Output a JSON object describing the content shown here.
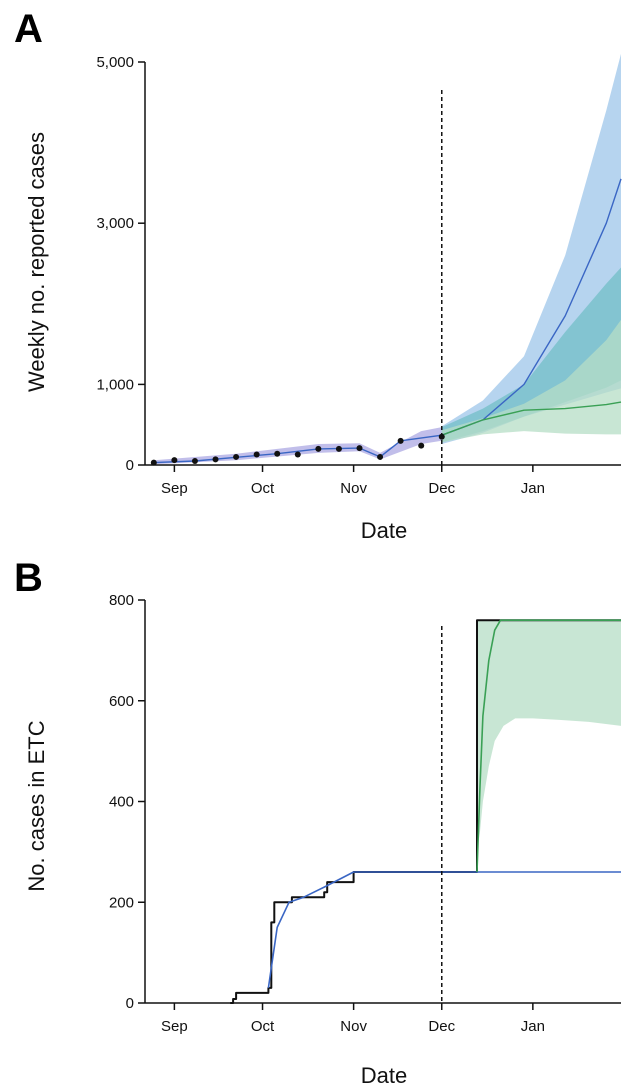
{
  "figure": {
    "panel_a_label": "A",
    "panel_b_label": "B"
  },
  "colors": {
    "blue_line": "#3a66c4",
    "blue_band": "#9ec5ea",
    "teal_band": "#5ab7b8",
    "green_line": "#3aa055",
    "green_band": "#b6ddc5",
    "purple_band": "#b6b3e6",
    "black": "#111111"
  },
  "chart_data": [
    {
      "type": "line",
      "panel": "A",
      "xlabel": "Date",
      "ylabel": "Weekly no. reported cases",
      "x_ticks": [
        "Sep",
        "Oct",
        "Nov",
        "Dec",
        "Jan"
      ],
      "y_ticks": [
        "0",
        "1,000",
        "3,000",
        "5,000"
      ],
      "y_tick_values": [
        0,
        1000,
        3000,
        5000
      ],
      "ylim": [
        0,
        5000
      ],
      "xlim": [
        "2014-08-22",
        "2015-01-31"
      ],
      "forecast_start": "2014-12-01",
      "observed": {
        "x": [
          "2014-08-25",
          "2014-09-01",
          "2014-09-08",
          "2014-09-15",
          "2014-09-22",
          "2014-09-29",
          "2014-10-06",
          "2014-10-13",
          "2014-10-20",
          "2014-10-27",
          "2014-11-03",
          "2014-11-10",
          "2014-11-17",
          "2014-11-24",
          "2014-12-01"
        ],
        "y": [
          30,
          60,
          50,
          70,
          100,
          130,
          140,
          130,
          200,
          200,
          210,
          100,
          300,
          240,
          350
        ]
      },
      "series": [
        {
          "x": [
            "2014-08-25",
            "2014-09-08",
            "2014-09-22",
            "2014-10-06",
            "2014-10-20",
            "2014-11-03",
            "2014-11-10",
            "2014-11-17",
            "2014-12-01",
            "2014-12-15",
            "2014-12-29",
            "2015-01-12",
            "2015-01-26",
            "2015-01-31"
          ],
          "y": [
            30,
            50,
            95,
            140,
            200,
            210,
            100,
            300,
            370,
            560,
            1000,
            1850,
            3000,
            3550
          ]
        },
        {
          "x": [
            "2014-12-01",
            "2014-12-15",
            "2014-12-29",
            "2015-01-12",
            "2015-01-26",
            "2015-01-31"
          ],
          "y": [
            370,
            560,
            680,
            700,
            750,
            780
          ]
        }
      ],
      "bands": [
        {
          "color": "purple",
          "x": [
            "2014-08-25",
            "2014-09-22",
            "2014-10-20",
            "2014-11-03",
            "2014-11-10",
            "2014-11-24",
            "2014-12-01"
          ],
          "low": [
            10,
            60,
            150,
            170,
            70,
            260,
            300
          ],
          "high": [
            60,
            140,
            260,
            270,
            150,
            420,
            470
          ]
        },
        {
          "color": "blue",
          "x": [
            "2014-12-01",
            "2014-12-15",
            "2014-12-29",
            "2015-01-12",
            "2015-01-26",
            "2015-01-31"
          ],
          "low": [
            260,
            400,
            600,
            750,
            900,
            950
          ],
          "high": [
            480,
            800,
            1350,
            2600,
            4400,
            5100
          ]
        },
        {
          "color": "teal",
          "x": [
            "2014-12-01",
            "2014-12-15",
            "2014-12-29",
            "2015-01-12",
            "2015-01-26",
            "2015-01-31"
          ],
          "low": [
            280,
            420,
            600,
            780,
            960,
            1050
          ],
          "high": [
            470,
            700,
            1000,
            1650,
            2250,
            2450
          ]
        },
        {
          "color": "green",
          "x": [
            "2014-12-01",
            "2014-12-15",
            "2014-12-29",
            "2015-01-12",
            "2015-01-26",
            "2015-01-31"
          ],
          "low": [
            280,
            380,
            420,
            390,
            380,
            380
          ],
          "high": [
            430,
            580,
            760,
            1050,
            1550,
            1800
          ]
        }
      ]
    },
    {
      "type": "line",
      "panel": "B",
      "xlabel": "Date",
      "ylabel": "No. cases in ETC",
      "x_ticks": [
        "Sep",
        "Oct",
        "Nov",
        "Dec",
        "Jan"
      ],
      "y_ticks": [
        "0",
        "200",
        "400",
        "600",
        "800"
      ],
      "y_tick_values": [
        0,
        200,
        400,
        600,
        800
      ],
      "ylim": [
        0,
        800
      ],
      "xlim": [
        "2014-08-22",
        "2015-01-31"
      ],
      "forecast_start": "2014-12-01",
      "series": [
        {
          "step": true,
          "x": [
            "2014-09-20",
            "2014-09-21",
            "2014-09-22",
            "2014-10-02",
            "2014-10-03",
            "2014-10-04",
            "2014-10-05",
            "2014-10-10",
            "2014-10-11",
            "2014-10-17",
            "2014-10-22",
            "2014-10-23",
            "2014-11-01",
            "2014-12-12",
            "2014-12-13",
            "2015-01-31"
          ],
          "y": [
            0,
            8,
            20,
            20,
            30,
            160,
            200,
            200,
            210,
            210,
            220,
            240,
            260,
            260,
            760,
            760
          ]
        },
        {
          "x": [
            "2014-10-03",
            "2014-10-06",
            "2014-10-10",
            "2014-10-15",
            "2014-10-22",
            "2014-11-01",
            "2014-12-13",
            "2015-01-31"
          ],
          "y": [
            30,
            150,
            200,
            210,
            230,
            260,
            260,
            260
          ]
        },
        {
          "x": [
            "2014-12-13",
            "2014-12-14",
            "2014-12-15",
            "2014-12-17",
            "2014-12-19",
            "2014-12-21",
            "2015-01-31"
          ],
          "y": [
            260,
            430,
            570,
            680,
            740,
            760,
            760
          ]
        }
      ],
      "bands": [
        {
          "color": "green",
          "x": [
            "2014-12-13",
            "2014-12-14",
            "2014-12-15",
            "2014-12-17",
            "2014-12-19",
            "2014-12-22",
            "2014-12-26",
            "2015-01-01",
            "2015-01-10",
            "2015-01-20",
            "2015-01-31"
          ],
          "low": [
            300,
            340,
            400,
            470,
            520,
            550,
            565,
            565,
            562,
            558,
            550
          ],
          "high": [
            760,
            760,
            760,
            760,
            760,
            760,
            760,
            760,
            760,
            760,
            760
          ]
        }
      ]
    }
  ]
}
